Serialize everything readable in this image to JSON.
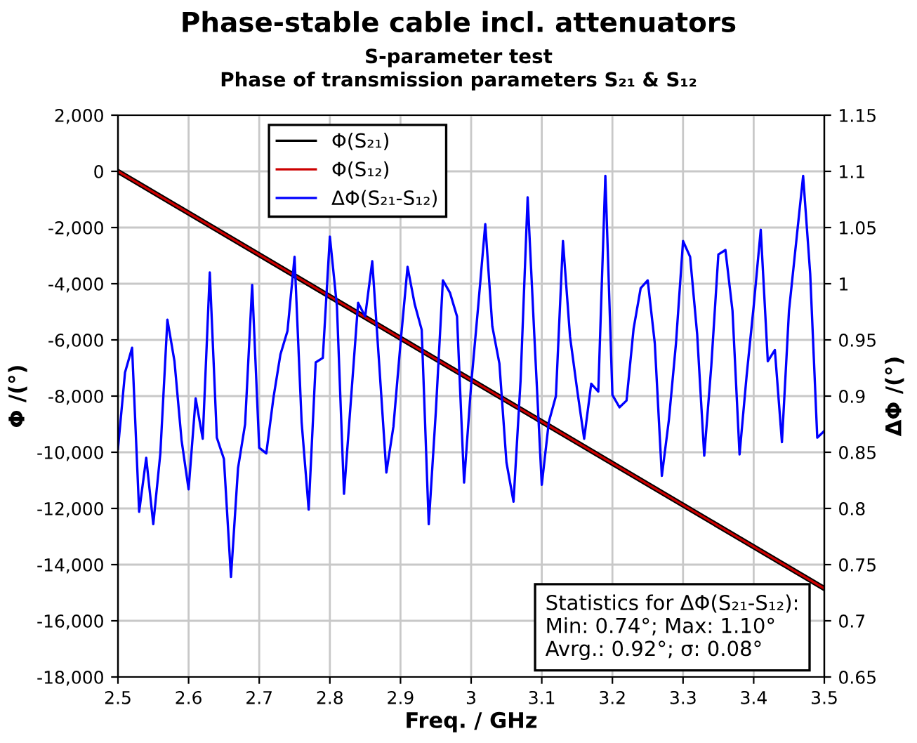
{
  "chart_data": {
    "type": "line",
    "title": "Phase-stable cable incl. attenuators",
    "subtitle": "S-parameter test\nPhase of transmission parameters S₂₁ & S₁₂",
    "xlabel": "Freq. / GHz",
    "ylabel": "Φ /(°)",
    "y2label": "ΔΦ /(°)",
    "series": [
      {
        "name": "Φ(S₂₁)",
        "color": "#000000",
        "x": [
          2.5,
          3.5
        ],
        "values": [
          0,
          -14850
        ]
      },
      {
        "name": "Φ(S₁₂)",
        "color": "#cc0000",
        "x": [
          2.5,
          3.5
        ],
        "values": [
          0,
          -14850
        ]
      },
      {
        "name": "ΔΦ(S₂₁-S₁₂)",
        "color": "#0000ff",
        "axis": "y2",
        "x": [
          2.5,
          2.51,
          2.52,
          2.53,
          2.54,
          2.55,
          2.56,
          2.57,
          2.58,
          2.59,
          2.6,
          2.61,
          2.62,
          2.63,
          2.64,
          2.65,
          2.66,
          2.67,
          2.68,
          2.69,
          2.7,
          2.71,
          2.72,
          2.73,
          2.74,
          2.75,
          2.76,
          2.77,
          2.78,
          2.79,
          2.8,
          2.81,
          2.82,
          2.83,
          2.84,
          2.85,
          2.86,
          2.87,
          2.88,
          2.89,
          2.9,
          2.91,
          2.92,
          2.93,
          2.94,
          2.95,
          2.96,
          2.97,
          2.98,
          2.99,
          3.0,
          3.01,
          3.02,
          3.03,
          3.04,
          3.05,
          3.06,
          3.07,
          3.08,
          3.09,
          3.1,
          3.11,
          3.12,
          3.13,
          3.14,
          3.15,
          3.16,
          3.17,
          3.18,
          3.19,
          3.2,
          3.21,
          3.22,
          3.23,
          3.24,
          3.25,
          3.26,
          3.27,
          3.28,
          3.29,
          3.3,
          3.31,
          3.32,
          3.33,
          3.34,
          3.35,
          3.36,
          3.37,
          3.38,
          3.39,
          3.4,
          3.41,
          3.42,
          3.43,
          3.44,
          3.45,
          3.46,
          3.47,
          3.48,
          3.49,
          3.5
        ],
        "values": [
          0.853,
          0.921,
          0.943,
          0.797,
          0.845,
          0.786,
          0.849,
          0.968,
          0.931,
          0.861,
          0.817,
          0.898,
          0.862,
          1.01,
          0.863,
          0.844,
          0.739,
          0.836,
          0.875,
          0.999,
          0.854,
          0.849,
          0.898,
          0.937,
          0.958,
          1.024,
          0.877,
          0.799,
          0.93,
          0.934,
          1.042,
          0.98,
          0.813,
          0.898,
          0.983,
          0.971,
          1.02,
          0.927,
          0.832,
          0.873,
          0.947,
          1.015,
          0.982,
          0.959,
          0.786,
          0.886,
          1.003,
          0.992,
          0.971,
          0.823,
          0.91,
          0.98,
          1.053,
          0.962,
          0.929,
          0.841,
          0.806,
          0.914,
          1.077,
          0.947,
          0.821,
          0.877,
          0.9,
          1.038,
          0.953,
          0.906,
          0.862,
          0.911,
          0.904,
          1.096,
          0.901,
          0.89,
          0.896,
          0.96,
          0.996,
          1.003,
          0.947,
          0.829,
          0.879,
          0.947,
          1.038,
          1.024,
          0.955,
          0.847,
          0.927,
          1.026,
          1.03,
          0.976,
          0.848,
          0.918,
          0.98,
          1.048,
          0.931,
          0.941,
          0.859,
          0.976,
          1.036,
          1.096,
          1.009,
          0.863,
          0.869
        ]
      }
    ],
    "xlim": [
      2.5,
      3.5
    ],
    "xticks": [
      2.5,
      2.6,
      2.7,
      2.8,
      2.9,
      3,
      3.1,
      3.2,
      3.3,
      3.4,
      3.5
    ],
    "ylim": [
      -18000,
      2000
    ],
    "yticks": [
      {
        "value": -18000,
        "label": "-18,000"
      },
      {
        "value": -16000,
        "label": "-16,000"
      },
      {
        "value": -14000,
        "label": "-14,000"
      },
      {
        "value": -12000,
        "label": "-12,000"
      },
      {
        "value": -10000,
        "label": "-10,000"
      },
      {
        "value": -8000,
        "label": "-8,000"
      },
      {
        "value": -6000,
        "label": "-6,000"
      },
      {
        "value": -4000,
        "label": "-4,000"
      },
      {
        "value": -2000,
        "label": "-2,000"
      },
      0,
      {
        "value": 2000,
        "label": "2,000"
      }
    ],
    "y2lim": [
      0.65,
      1.15
    ],
    "y2ticks": [
      0.65,
      0.7,
      0.75,
      0.8,
      0.85,
      0.9,
      0.95,
      1,
      1.05,
      1.1,
      1.15
    ],
    "grid": true,
    "legend": "top",
    "line_style": "solid",
    "marker": "none",
    "annotations": [
      "Statistics for ΔΦ(S₂₁-S₁₂):\nMin: 0.74°; Max: 1.10°\nAvrg.: 0.92°; σ: 0.08°"
    ]
  }
}
